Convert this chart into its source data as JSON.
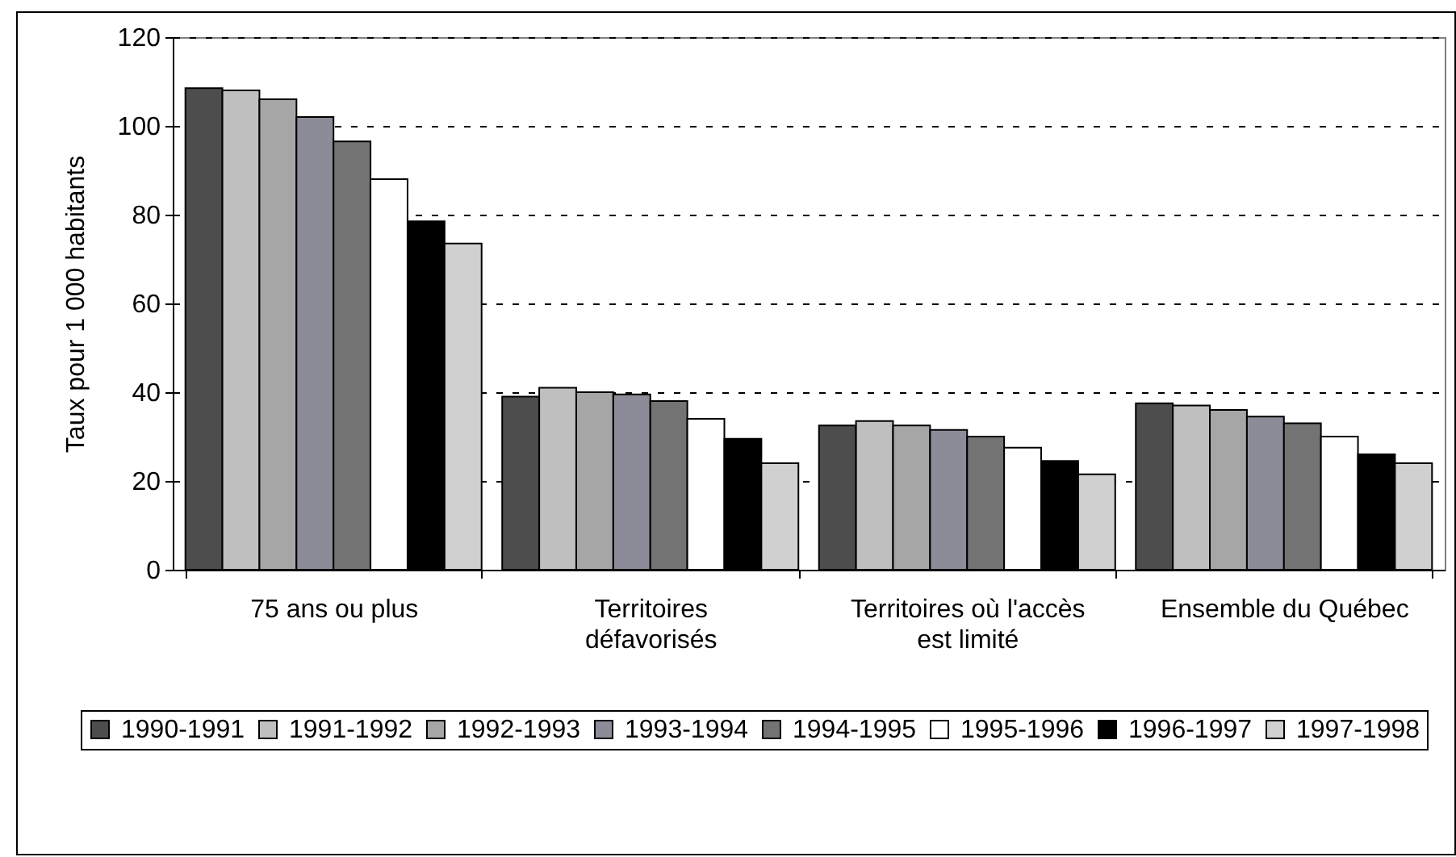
{
  "chart_data": {
    "type": "bar",
    "ylabel": "Taux pour 1 000 habitants",
    "categories": [
      "75 ans ou plus",
      "Territoires défavorisés",
      "Territoires où l'accès est limité",
      "Ensemble du Québec"
    ],
    "series": [
      {
        "name": "1990-1991",
        "color": "#4d4d4d",
        "values": [
          108.5,
          39,
          32.5,
          37.5
        ]
      },
      {
        "name": "1991-1992",
        "color": "#bfbfbf",
        "values": [
          108,
          41,
          33.5,
          37
        ]
      },
      {
        "name": "1992-1993",
        "color": "#a6a6a6",
        "values": [
          106,
          40,
          32.5,
          36
        ]
      },
      {
        "name": "1993-1994",
        "color": "#8c8c99",
        "values": [
          102,
          39.5,
          31.5,
          34.5
        ]
      },
      {
        "name": "1994-1995",
        "color": "#737373",
        "values": [
          96.5,
          38,
          30,
          33
        ]
      },
      {
        "name": "1995-1996",
        "color": "#ffffff",
        "values": [
          88,
          34,
          27.5,
          30
        ]
      },
      {
        "name": "1996-1997",
        "color": "#000000",
        "values": [
          78.5,
          29.5,
          24.5,
          26
        ]
      },
      {
        "name": "1997-1998",
        "color": "#d0d0d0",
        "values": [
          73.5,
          24,
          21.5,
          24
        ]
      }
    ],
    "ylim": [
      0,
      120
    ],
    "yticks": [
      0,
      20,
      40,
      60,
      80,
      100,
      120
    ],
    "grid": "y",
    "legend": "bottom"
  }
}
